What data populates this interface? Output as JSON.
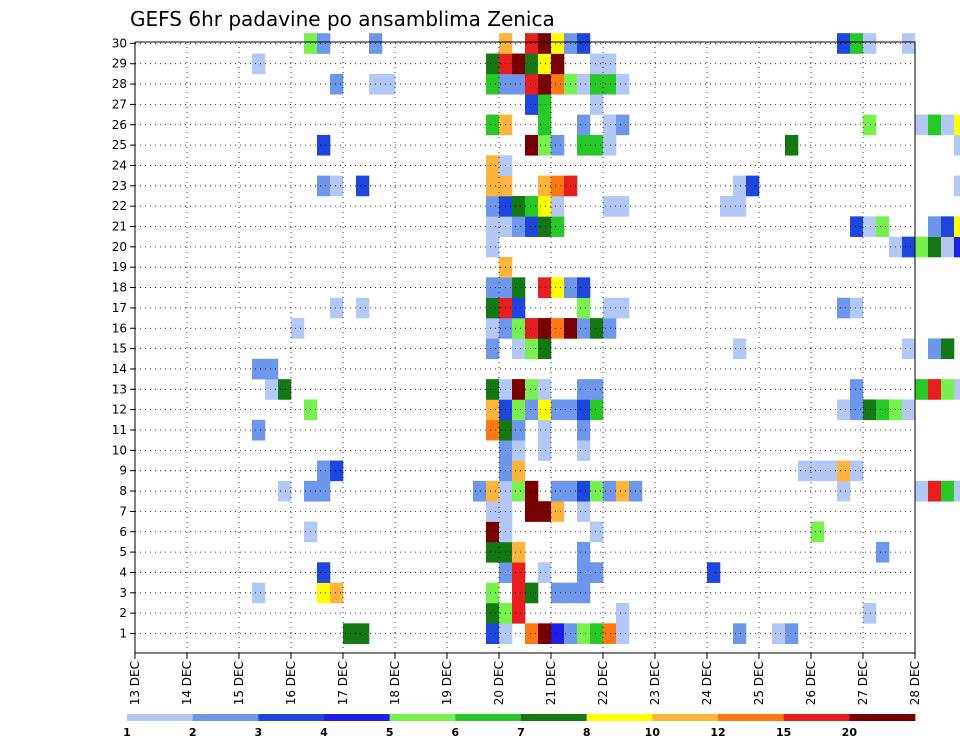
{
  "chart_data": {
    "type": "heatmap",
    "title": "GEFS 6hr padavine po ansamblima Zenica",
    "y_members": [
      "1",
      "2",
      "3",
      "4",
      "5",
      "6",
      "7",
      "8",
      "9",
      "10",
      "11",
      "12",
      "13",
      "14",
      "15",
      "16",
      "17",
      "18",
      "19",
      "20",
      "21",
      "22",
      "23",
      "24",
      "25",
      "26",
      "27",
      "28",
      "29",
      "30"
    ],
    "x_tick_labels": [
      "13 DEC",
      "14 DEC",
      "15 DEC",
      "16 DEC",
      "17 DEC",
      "18 DEC",
      "19 DEC",
      "20 DEC",
      "21 DEC",
      "22 DEC",
      "23 DEC",
      "24 DEC",
      "25 DEC",
      "26 DEC",
      "27 DEC",
      "28 DEC"
    ],
    "x_steps_per_day": 4,
    "grid": true,
    "colorbar": {
      "bounds": [
        "1",
        "2",
        "3",
        "4",
        "5",
        "6",
        "7",
        "8",
        "10",
        "12",
        "15",
        "20"
      ],
      "colors": [
        "#b4c8f5",
        "#6e96eb",
        "#1e46dc",
        "#1e1ee6",
        "#78f050",
        "#28c828",
        "#147814",
        "#ffff00",
        "#ffb43c",
        "#ff7814",
        "#e61e1e",
        "#780000"
      ]
    },
    "cells": [
      [
        1,
        "1",
        16,
        6
      ],
      [
        1,
        "1",
        17,
        6
      ],
      [
        1,
        "1",
        27,
        2
      ],
      [
        1,
        "1",
        28,
        0
      ],
      [
        1,
        "1",
        30,
        9
      ],
      [
        1,
        "1",
        31,
        11
      ],
      [
        1,
        "1",
        32,
        3
      ],
      [
        1,
        "1",
        33,
        1
      ],
      [
        1,
        "1",
        34,
        4
      ],
      [
        1,
        "1",
        35,
        5
      ],
      [
        1,
        "1",
        36,
        9
      ],
      [
        1,
        "1",
        37,
        0
      ],
      [
        1,
        "1",
        46,
        1
      ],
      [
        1,
        "1",
        49,
        0
      ],
      [
        1,
        "1",
        50,
        1
      ],
      [
        2,
        "2",
        27,
        6
      ],
      [
        2,
        "2",
        28,
        4
      ],
      [
        2,
        "2",
        29,
        10
      ],
      [
        2,
        "2",
        37,
        0
      ],
      [
        2,
        "2",
        56,
        0
      ],
      [
        3,
        "3",
        9,
        0
      ],
      [
        3,
        "3",
        14,
        7
      ],
      [
        3,
        "3",
        15,
        8
      ],
      [
        3,
        "3",
        27,
        4
      ],
      [
        3,
        "3",
        29,
        10
      ],
      [
        3,
        "3",
        30,
        6
      ],
      [
        3,
        "3",
        32,
        1
      ],
      [
        3,
        "3",
        33,
        1
      ],
      [
        3,
        "3",
        34,
        1
      ],
      [
        4,
        "4",
        14,
        2
      ],
      [
        4,
        "4",
        28,
        1
      ],
      [
        4,
        "4",
        29,
        10
      ],
      [
        4,
        "4",
        31,
        0
      ],
      [
        4,
        "4",
        34,
        1
      ],
      [
        4,
        "4",
        35,
        1
      ],
      [
        4,
        "4",
        44,
        2
      ],
      [
        5,
        "5",
        27,
        6
      ],
      [
        5,
        "5",
        28,
        6
      ],
      [
        5,
        "5",
        29,
        8
      ],
      [
        5,
        "5",
        34,
        1
      ],
      [
        5,
        "5",
        57,
        1
      ],
      [
        6,
        "6",
        13,
        0
      ],
      [
        6,
        "6",
        27,
        11
      ],
      [
        6,
        "6",
        28,
        0
      ],
      [
        6,
        "6",
        35,
        0
      ],
      [
        6,
        "6",
        52,
        4
      ],
      [
        7,
        "7",
        27,
        0
      ],
      [
        7,
        "7",
        28,
        0
      ],
      [
        7,
        "7",
        30,
        11
      ],
      [
        7,
        "7",
        31,
        11
      ],
      [
        7,
        "7",
        32,
        8
      ],
      [
        7,
        "7",
        34,
        0
      ],
      [
        8,
        "8",
        11,
        0
      ],
      [
        8,
        "8",
        13,
        1
      ],
      [
        8,
        "8",
        14,
        1
      ],
      [
        8,
        "8",
        26,
        1
      ],
      [
        8,
        "8",
        27,
        8
      ],
      [
        8,
        "8",
        28,
        0
      ],
      [
        8,
        "8",
        29,
        4
      ],
      [
        8,
        "8",
        30,
        11
      ],
      [
        8,
        "8",
        32,
        1
      ],
      [
        8,
        "8",
        33,
        1
      ],
      [
        8,
        "8",
        34,
        2
      ],
      [
        8,
        "8",
        35,
        4
      ],
      [
        8,
        "8",
        36,
        1
      ],
      [
        8,
        "8",
        37,
        8
      ],
      [
        8,
        "8",
        38,
        1
      ],
      [
        8,
        "8",
        54,
        0
      ],
      [
        8,
        "8",
        60,
        0
      ],
      [
        8,
        "8",
        61,
        10
      ],
      [
        8,
        "8",
        62,
        5
      ],
      [
        8,
        "8",
        63,
        0
      ],
      [
        9,
        "9",
        14,
        1
      ],
      [
        9,
        "9",
        15,
        2
      ],
      [
        9,
        "9",
        28,
        1
      ],
      [
        9,
        "9",
        29,
        8
      ],
      [
        9,
        "9",
        51,
        0
      ],
      [
        9,
        "9",
        52,
        0
      ],
      [
        9,
        "9",
        53,
        0
      ],
      [
        9,
        "9",
        54,
        8
      ],
      [
        9,
        "9",
        55,
        0
      ],
      [
        10,
        "10",
        28,
        1
      ],
      [
        10,
        "10",
        29,
        0
      ],
      [
        10,
        "10",
        31,
        0
      ],
      [
        10,
        "10",
        34,
        0
      ],
      [
        11,
        "11",
        9,
        1
      ],
      [
        11,
        "11",
        27,
        9
      ],
      [
        11,
        "11",
        28,
        6
      ],
      [
        11,
        "11",
        29,
        1
      ],
      [
        11,
        "11",
        31,
        0
      ],
      [
        11,
        "11",
        34,
        1
      ],
      [
        12,
        "12",
        13,
        4
      ],
      [
        12,
        "12",
        27,
        8
      ],
      [
        12,
        "12",
        28,
        2
      ],
      [
        12,
        "12",
        29,
        4
      ],
      [
        12,
        "12",
        30,
        1
      ],
      [
        12,
        "12",
        31,
        7
      ],
      [
        12,
        "12",
        32,
        1
      ],
      [
        12,
        "12",
        33,
        1
      ],
      [
        12,
        "12",
        34,
        2
      ],
      [
        12,
        "12",
        35,
        5
      ],
      [
        12,
        "12",
        54,
        0
      ],
      [
        12,
        "12",
        55,
        1
      ],
      [
        12,
        "12",
        56,
        6
      ],
      [
        12,
        "12",
        57,
        5
      ],
      [
        12,
        "12",
        58,
        4
      ],
      [
        12,
        "12",
        59,
        0
      ],
      [
        13,
        "13",
        10,
        0
      ],
      [
        13,
        "13",
        11,
        6
      ],
      [
        13,
        "13",
        27,
        6
      ],
      [
        13,
        "13",
        28,
        0
      ],
      [
        13,
        "13",
        29,
        11
      ],
      [
        13,
        "13",
        30,
        4
      ],
      [
        13,
        "13",
        31,
        0
      ],
      [
        13,
        "13",
        34,
        1
      ],
      [
        13,
        "13",
        35,
        1
      ],
      [
        13,
        "13",
        55,
        1
      ],
      [
        13,
        "13",
        60,
        5
      ],
      [
        13,
        "13",
        61,
        10
      ],
      [
        13,
        "13",
        62,
        4
      ],
      [
        13,
        "13",
        63,
        0
      ],
      [
        14,
        "14",
        9,
        1
      ],
      [
        14,
        "14",
        10,
        1
      ],
      [
        15,
        "15",
        27,
        1
      ],
      [
        15,
        "15",
        29,
        0
      ],
      [
        15,
        "15",
        30,
        4
      ],
      [
        15,
        "15",
        31,
        6
      ],
      [
        15,
        "15",
        46,
        0
      ],
      [
        15,
        "15",
        59,
        0
      ],
      [
        15,
        "15",
        61,
        1
      ],
      [
        15,
        "15",
        62,
        6
      ],
      [
        16,
        "16",
        12,
        0
      ],
      [
        16,
        "16",
        27,
        0
      ],
      [
        16,
        "16",
        28,
        1
      ],
      [
        16,
        "16",
        29,
        4
      ],
      [
        16,
        "16",
        30,
        10
      ],
      [
        16,
        "16",
        31,
        11
      ],
      [
        16,
        "16",
        32,
        9
      ],
      [
        16,
        "16",
        33,
        11
      ],
      [
        16,
        "16",
        34,
        1
      ],
      [
        16,
        "16",
        35,
        6
      ],
      [
        16,
        "16",
        36,
        1
      ],
      [
        17,
        "17",
        15,
        0
      ],
      [
        17,
        "17",
        17,
        0
      ],
      [
        17,
        "17",
        27,
        6
      ],
      [
        17,
        "17",
        28,
        10
      ],
      [
        17,
        "17",
        29,
        2
      ],
      [
        17,
        "17",
        34,
        4
      ],
      [
        17,
        "17",
        36,
        0
      ],
      [
        17,
        "17",
        37,
        0
      ],
      [
        17,
        "17",
        54,
        1
      ],
      [
        17,
        "17",
        55,
        0
      ],
      [
        18,
        "18",
        27,
        1
      ],
      [
        18,
        "18",
        28,
        1
      ],
      [
        18,
        "18",
        29,
        6
      ],
      [
        18,
        "18",
        31,
        10
      ],
      [
        18,
        "18",
        32,
        7
      ],
      [
        18,
        "18",
        33,
        1
      ],
      [
        18,
        "18",
        34,
        2
      ],
      [
        19,
        "19",
        28,
        8
      ],
      [
        20,
        "20",
        27,
        0
      ],
      [
        20,
        "20",
        58,
        0
      ],
      [
        20,
        "20",
        59,
        2
      ],
      [
        20,
        "20",
        60,
        4
      ],
      [
        20,
        "20",
        61,
        6
      ],
      [
        20,
        "20",
        62,
        0
      ],
      [
        20,
        "20",
        63,
        3
      ],
      [
        21,
        "21",
        27,
        0
      ],
      [
        21,
        "21",
        28,
        0
      ],
      [
        21,
        "21",
        29,
        1
      ],
      [
        21,
        "21",
        30,
        2
      ],
      [
        21,
        "21",
        31,
        6
      ],
      [
        21,
        "21",
        32,
        5
      ],
      [
        21,
        "21",
        55,
        2
      ],
      [
        21,
        "21",
        56,
        0
      ],
      [
        21,
        "21",
        57,
        4
      ],
      [
        21,
        "21",
        61,
        1
      ],
      [
        21,
        "21",
        62,
        2
      ],
      [
        21,
        "21",
        63,
        7
      ],
      [
        22,
        "22",
        27,
        1
      ],
      [
        22,
        "22",
        28,
        2
      ],
      [
        22,
        "22",
        29,
        6
      ],
      [
        22,
        "22",
        30,
        5
      ],
      [
        22,
        "22",
        31,
        7
      ],
      [
        22,
        "22",
        32,
        0
      ],
      [
        22,
        "22",
        36,
        0
      ],
      [
        22,
        "22",
        37,
        0
      ],
      [
        22,
        "22",
        45,
        0
      ],
      [
        22,
        "22",
        46,
        0
      ],
      [
        23,
        "23",
        14,
        1
      ],
      [
        23,
        "23",
        15,
        0
      ],
      [
        23,
        "23",
        17,
        2
      ],
      [
        23,
        "23",
        27,
        8
      ],
      [
        23,
        "23",
        28,
        8
      ],
      [
        23,
        "23",
        31,
        8
      ],
      [
        23,
        "23",
        32,
        9
      ],
      [
        23,
        "23",
        33,
        10
      ],
      [
        23,
        "23",
        46,
        0
      ],
      [
        23,
        "23",
        47,
        2
      ],
      [
        23,
        "23",
        63,
        0
      ],
      [
        24,
        "24",
        27,
        8
      ],
      [
        24,
        "24",
        28,
        0
      ],
      [
        25,
        "25",
        14,
        2
      ],
      [
        25,
        "25",
        30,
        11
      ],
      [
        25,
        "25",
        31,
        4
      ],
      [
        25,
        "25",
        32,
        1
      ],
      [
        25,
        "25",
        34,
        5
      ],
      [
        25,
        "25",
        35,
        5
      ],
      [
        25,
        "25",
        36,
        0
      ],
      [
        25,
        "25",
        50,
        6
      ],
      [
        25,
        "25",
        63,
        0
      ],
      [
        26,
        "26",
        27,
        5
      ],
      [
        26,
        "26",
        28,
        8
      ],
      [
        26,
        "26",
        31,
        5
      ],
      [
        26,
        "26",
        34,
        1
      ],
      [
        26,
        "26",
        36,
        0
      ],
      [
        26,
        "26",
        37,
        1
      ],
      [
        26,
        "26",
        56,
        4
      ],
      [
        26,
        "26",
        60,
        0
      ],
      [
        26,
        "26",
        61,
        5
      ],
      [
        26,
        "26",
        62,
        0
      ],
      [
        26,
        "26",
        63,
        7
      ],
      [
        27,
        "27",
        30,
        2
      ],
      [
        27,
        "27",
        31,
        5
      ],
      [
        27,
        "27",
        35,
        0
      ],
      [
        28,
        "28",
        15,
        1
      ],
      [
        28,
        "28",
        18,
        0
      ],
      [
        28,
        "28",
        19,
        0
      ],
      [
        28,
        "28",
        27,
        5
      ],
      [
        28,
        "28",
        28,
        1
      ],
      [
        28,
        "28",
        29,
        1
      ],
      [
        28,
        "28",
        30,
        10
      ],
      [
        28,
        "28",
        31,
        11
      ],
      [
        28,
        "28",
        32,
        9
      ],
      [
        28,
        "28",
        33,
        4
      ],
      [
        28,
        "28",
        34,
        0
      ],
      [
        28,
        "28",
        35,
        5
      ],
      [
        28,
        "28",
        36,
        5
      ],
      [
        28,
        "28",
        37,
        0
      ],
      [
        29,
        "29",
        9,
        0
      ],
      [
        29,
        "29",
        27,
        6
      ],
      [
        29,
        "29",
        28,
        10
      ],
      [
        29,
        "29",
        29,
        11
      ],
      [
        29,
        "29",
        30,
        6
      ],
      [
        29,
        "29",
        31,
        7
      ],
      [
        29,
        "29",
        32,
        11
      ],
      [
        29,
        "29",
        35,
        0
      ],
      [
        29,
        "29",
        36,
        0
      ],
      [
        30,
        "30",
        13,
        4
      ],
      [
        30,
        "30",
        14,
        1
      ],
      [
        30,
        "30",
        18,
        1
      ],
      [
        30,
        "30",
        28,
        8
      ],
      [
        30,
        "30",
        30,
        10
      ],
      [
        30,
        "30",
        31,
        11
      ],
      [
        30,
        "30",
        32,
        7
      ],
      [
        30,
        "30",
        33,
        1
      ],
      [
        30,
        "30",
        34,
        2
      ],
      [
        30,
        "30",
        54,
        2
      ],
      [
        30,
        "30",
        55,
        5
      ],
      [
        30,
        "30",
        56,
        0
      ],
      [
        30,
        "30",
        59,
        0
      ]
    ]
  }
}
